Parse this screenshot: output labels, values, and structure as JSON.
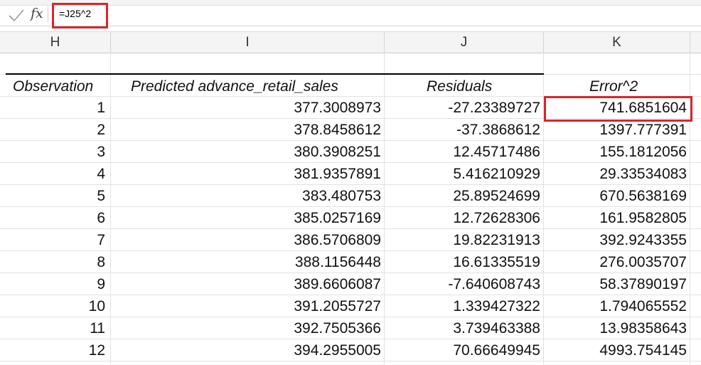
{
  "formula_bar": {
    "formula": "=J25^2",
    "fx_label": "fx"
  },
  "columns": [
    "H",
    "I",
    "J",
    "K"
  ],
  "table": {
    "headers": [
      "Observation",
      "Predicted advance_retail_sales",
      "Residuals",
      "Error^2"
    ],
    "rows": [
      [
        "1",
        "377.3008973",
        "-27.23389727",
        "741.6851604"
      ],
      [
        "2",
        "378.8458612",
        "-37.3868612",
        "1397.777391"
      ],
      [
        "3",
        "380.3908251",
        "12.45717486",
        "155.1812056"
      ],
      [
        "4",
        "381.9357891",
        "5.416210929",
        "29.33534083"
      ],
      [
        "5",
        "383.480753",
        "25.89524699",
        "670.5638169"
      ],
      [
        "6",
        "385.0257169",
        "12.72628306",
        "161.9582805"
      ],
      [
        "7",
        "386.5706809",
        "19.82231913",
        "392.9243355"
      ],
      [
        "8",
        "388.1156448",
        "16.61335519",
        "276.0035707"
      ],
      [
        "9",
        "389.6606087",
        "-7.640608743",
        "58.37890197"
      ],
      [
        "10",
        "391.2055727",
        "1.339427322",
        "1.794065552"
      ],
      [
        "11",
        "392.7505366",
        "3.739463388",
        "13.98358643"
      ],
      [
        "12",
        "394.2955005",
        "70.66649945",
        "4993.754145"
      ]
    ]
  },
  "colors": {
    "highlight": "#d9262c"
  }
}
